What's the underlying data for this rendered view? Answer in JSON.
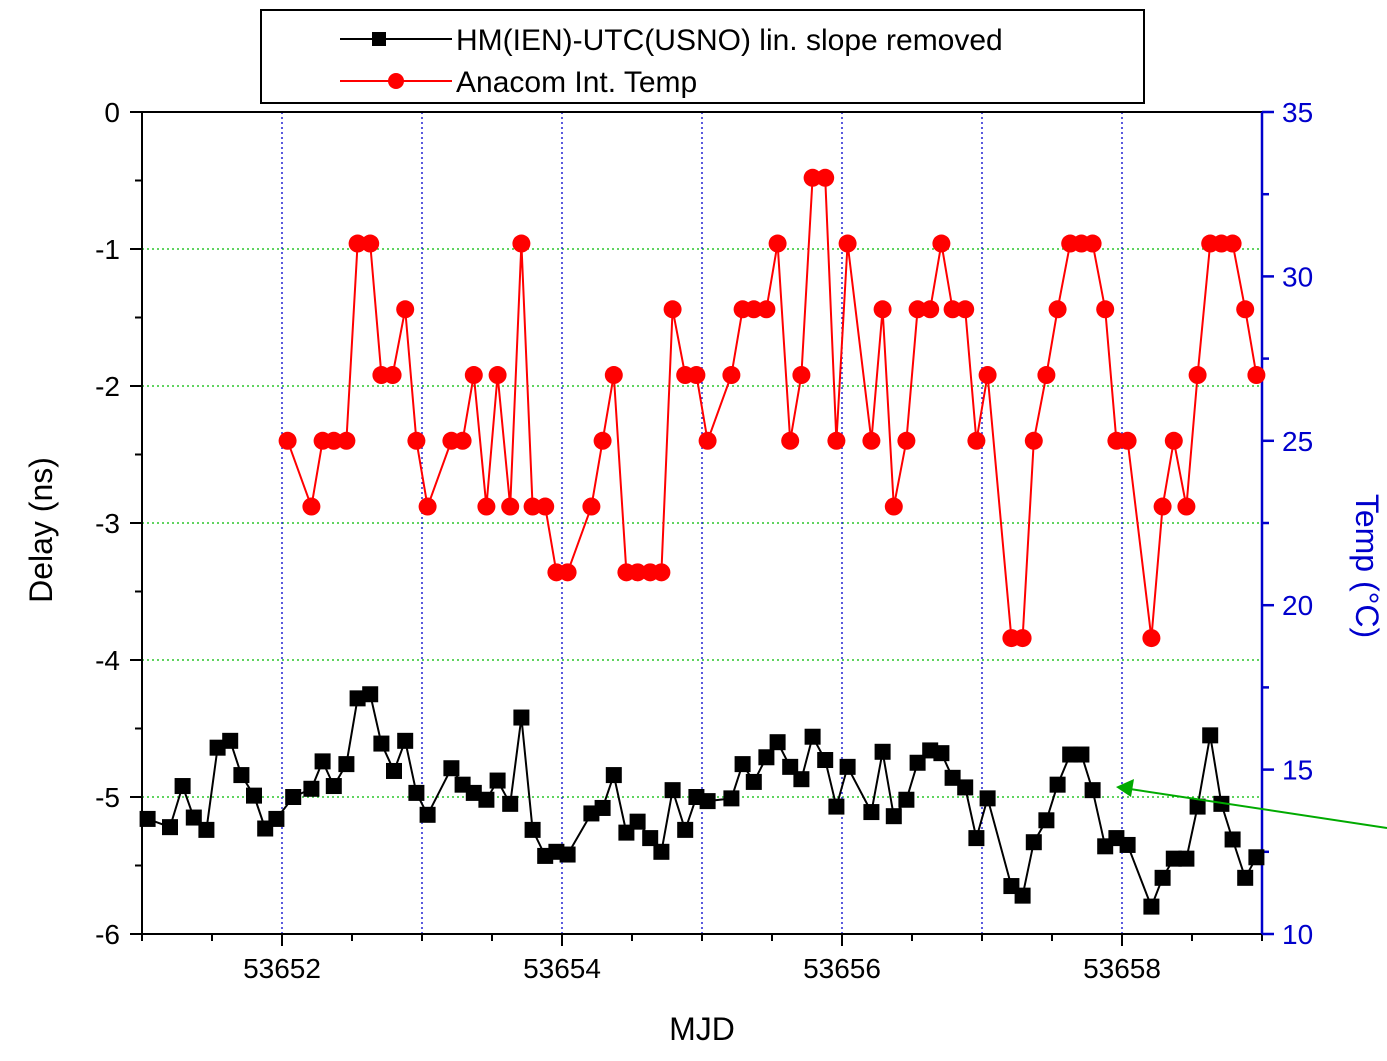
{
  "chart_data": {
    "type": "line",
    "title": "",
    "xlabel": "MJD",
    "ylabel": "Delay (ns)",
    "y2label": "Temp (°C)",
    "xlim": [
      53651,
      53659
    ],
    "ylim": [
      -6,
      0
    ],
    "y2lim": [
      10,
      35
    ],
    "xticks": [
      53652,
      53654,
      53656,
      53658
    ],
    "yticks": [
      0,
      -1,
      -2,
      -3,
      -4,
      -5,
      -6
    ],
    "y2ticks": [
      35,
      30,
      25,
      20,
      15,
      10
    ],
    "grid": true,
    "legend_position": "top",
    "colors": {
      "delay": "#000000",
      "temp": "#ff0000",
      "right_axis": "#0000cc",
      "grid": "#00bb00",
      "vgrid": "#0000cc",
      "arrow": "#00aa00"
    },
    "series": [
      {
        "name": "HM(IEN)-UTC(USNO) lin. slope removed",
        "axis": "left",
        "marker": "square",
        "x": [
          53651.04,
          53651.2,
          53651.29,
          53651.37,
          53651.46,
          53651.54,
          53651.63,
          53651.71,
          53651.8,
          53651.88,
          53651.96,
          53652.08,
          53652.21,
          53652.29,
          53652.37,
          53652.46,
          53652.54,
          53652.63,
          53652.71,
          53652.8,
          53652.88,
          53652.96,
          53653.04,
          53653.21,
          53653.29,
          53653.37,
          53653.46,
          53653.54,
          53653.63,
          53653.71,
          53653.79,
          53653.88,
          53653.96,
          53654.04,
          53654.21,
          53654.29,
          53654.37,
          53654.46,
          53654.54,
          53654.63,
          53654.71,
          53654.79,
          53654.88,
          53654.96,
          53655.04,
          53655.21,
          53655.29,
          53655.37,
          53655.46,
          53655.54,
          53655.63,
          53655.71,
          53655.79,
          53655.88,
          53655.96,
          53656.04,
          53656.21,
          53656.29,
          53656.37,
          53656.46,
          53656.54,
          53656.63,
          53656.71,
          53656.79,
          53656.88,
          53656.96,
          53657.04,
          53657.21,
          53657.29,
          53657.37,
          53657.46,
          53657.54,
          53657.63,
          53657.71,
          53657.79,
          53657.88,
          53657.96,
          53658.04,
          53658.21,
          53658.29,
          53658.37,
          53658.46,
          53658.54,
          53658.63,
          53658.71,
          53658.79,
          53658.88,
          53658.96
        ],
        "y": [
          -5.16,
          -5.22,
          -4.92,
          -5.15,
          -5.24,
          -4.64,
          -4.59,
          -4.84,
          -4.99,
          -5.23,
          -5.16,
          -5.0,
          -4.94,
          -4.74,
          -4.92,
          -4.76,
          -4.28,
          -4.25,
          -4.61,
          -4.81,
          -4.59,
          -4.97,
          -5.13,
          -4.79,
          -4.91,
          -4.97,
          -5.02,
          -4.88,
          -5.05,
          -4.42,
          -5.24,
          -5.43,
          -5.4,
          -5.42,
          -5.12,
          -5.08,
          -4.84,
          -5.26,
          -5.18,
          -5.3,
          -5.4,
          -4.95,
          -5.24,
          -5.0,
          -5.03,
          -5.01,
          -4.76,
          -4.89,
          -4.71,
          -4.6,
          -4.78,
          -4.87,
          -4.56,
          -4.73,
          -5.07,
          -4.78,
          -5.11,
          -4.67,
          -5.14,
          -5.02,
          -4.75,
          -4.66,
          -4.68,
          -4.86,
          -4.93,
          -5.3,
          -5.01,
          -5.65,
          -5.72,
          -5.33,
          -5.17,
          -4.91,
          -4.69,
          -4.69,
          -4.95,
          -5.36,
          -5.3,
          -5.35,
          -5.8,
          -5.59,
          -5.45,
          -5.45,
          -5.07,
          -4.55,
          -5.05,
          -5.31,
          -5.59,
          -5.44
        ]
      },
      {
        "name": "Anacom Int. Temp",
        "axis": "right",
        "marker": "circle",
        "x": [
          53652.04,
          53652.21,
          53652.29,
          53652.37,
          53652.46,
          53652.54,
          53652.63,
          53652.71,
          53652.79,
          53652.88,
          53652.96,
          53653.04,
          53653.21,
          53653.29,
          53653.37,
          53653.46,
          53653.54,
          53653.63,
          53653.71,
          53653.79,
          53653.88,
          53653.96,
          53654.04,
          53654.21,
          53654.29,
          53654.37,
          53654.46,
          53654.54,
          53654.63,
          53654.71,
          53654.79,
          53654.88,
          53654.96,
          53655.04,
          53655.21,
          53655.29,
          53655.37,
          53655.46,
          53655.54,
          53655.63,
          53655.71,
          53655.79,
          53655.88,
          53655.96,
          53656.04,
          53656.21,
          53656.29,
          53656.37,
          53656.46,
          53656.54,
          53656.63,
          53656.71,
          53656.79,
          53656.88,
          53656.96,
          53657.04,
          53657.21,
          53657.29,
          53657.37,
          53657.46,
          53657.54,
          53657.63,
          53657.71,
          53657.79,
          53657.88,
          53657.96,
          53658.04,
          53658.21,
          53658.29,
          53658.37,
          53658.46,
          53658.54,
          53658.63,
          53658.71,
          53658.79,
          53658.88,
          53658.96
        ],
        "y": [
          25,
          23,
          25,
          25,
          25,
          31,
          31,
          27,
          27,
          29,
          25,
          23,
          25,
          25,
          27,
          23,
          27,
          23,
          31,
          23,
          23,
          21,
          21,
          23,
          25,
          27,
          21,
          21,
          21,
          21,
          29,
          27,
          27,
          25,
          27,
          29,
          29,
          29,
          31,
          25,
          27,
          33,
          33,
          25,
          31,
          25,
          29,
          23,
          25,
          29,
          29,
          31,
          29,
          29,
          25,
          27,
          19,
          19,
          25,
          27,
          29,
          31,
          31,
          31,
          29,
          25,
          25,
          19,
          23,
          25,
          23,
          27,
          31,
          31,
          31,
          29,
          27
        ]
      }
    ]
  }
}
